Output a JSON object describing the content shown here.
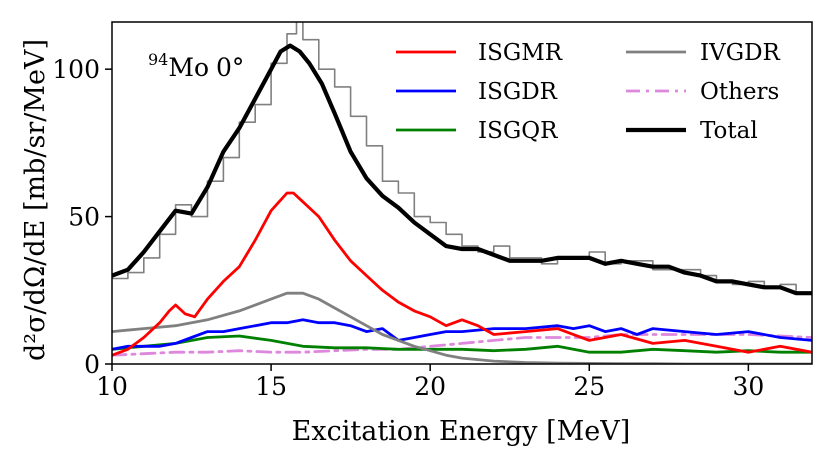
{
  "chart_data": {
    "type": "line",
    "title": "",
    "annotation": {
      "nucleus_mass": "94",
      "nucleus_symbol": "Mo",
      "angle": "0°"
    },
    "xlabel": "Excitation Energy [MeV]",
    "ylabel": "d²σ/dΩ/dE [mb/sr/MeV]",
    "xlim": [
      10,
      32
    ],
    "ylim": [
      0,
      116
    ],
    "xticks": [
      10,
      15,
      20,
      25,
      30
    ],
    "yticks": [
      0,
      50,
      100
    ],
    "legend_position": "upper-right",
    "series": [
      {
        "name": "ISGMR",
        "color": "#ff0000",
        "style": "solid",
        "x": [
          10,
          10.5,
          11,
          11.5,
          11.8,
          12,
          12.3,
          12.6,
          13,
          13.5,
          14,
          14.5,
          15,
          15.5,
          15.7,
          16,
          16.5,
          17,
          17.5,
          18,
          18.5,
          19,
          19.5,
          20,
          20.5,
          21,
          21.5,
          22,
          23,
          24,
          25,
          26,
          27,
          28,
          29,
          30,
          31,
          32
        ],
        "y": [
          3,
          5,
          9,
          14,
          18,
          20,
          17,
          16,
          22,
          28,
          33,
          42,
          52,
          58,
          58,
          55,
          50,
          42,
          35,
          30,
          25,
          21,
          18,
          16,
          13,
          15,
          13,
          10,
          11,
          12,
          8,
          10,
          7,
          8,
          6,
          4,
          6,
          4
        ]
      },
      {
        "name": "ISGDR",
        "color": "#0000ff",
        "style": "solid",
        "x": [
          10,
          10.5,
          11,
          11.5,
          12,
          12.5,
          13,
          13.5,
          14,
          14.5,
          15,
          15.5,
          16,
          16.5,
          17,
          17.5,
          18,
          18.5,
          19,
          19.5,
          20,
          20.5,
          21,
          22,
          23,
          24,
          24.5,
          25,
          25.5,
          26,
          26.5,
          27,
          28,
          29,
          30,
          31,
          32
        ],
        "y": [
          5,
          6,
          6,
          6,
          7,
          9,
          11,
          11,
          12,
          13,
          14,
          14,
          15,
          14,
          14,
          13,
          11,
          12,
          8,
          9,
          10,
          11,
          11,
          12,
          12,
          13,
          12,
          13,
          11,
          12,
          10,
          12,
          11,
          10,
          11,
          9,
          8
        ]
      },
      {
        "name": "ISGQR",
        "color": "#008000",
        "style": "solid",
        "x": [
          10,
          11,
          12,
          13,
          14,
          15,
          16,
          17,
          18,
          19,
          20,
          21,
          22,
          23,
          24,
          25,
          26,
          27,
          28,
          29,
          30,
          31,
          32
        ],
        "y": [
          5,
          6,
          7,
          9,
          9.5,
          8,
          6,
          5.5,
          5.5,
          5,
          5,
          5,
          4.5,
          5,
          6,
          4,
          4,
          5,
          4.5,
          4,
          4.5,
          4,
          4
        ]
      },
      {
        "name": "IVGDR",
        "color": "#808080",
        "style": "solid",
        "x": [
          10,
          11,
          12,
          13,
          14,
          15,
          15.5,
          16,
          16.5,
          17,
          17.5,
          18,
          18.5,
          19,
          19.5,
          20,
          20.5,
          21,
          21.5,
          22,
          23,
          24,
          25,
          26,
          27,
          28,
          29,
          30,
          31,
          32
        ],
        "y": [
          11,
          12,
          13,
          15,
          18,
          22,
          24,
          24,
          22,
          19,
          16,
          13,
          10,
          8,
          6,
          4.5,
          3,
          2,
          1.5,
          1,
          0.5,
          0.3,
          0.2,
          0.1,
          0.1,
          0,
          0,
          0,
          0,
          0
        ]
      },
      {
        "name": "Others",
        "color": "#dd88dd",
        "style": "dashdot",
        "x": [
          10,
          11,
          12,
          13,
          14,
          15,
          16,
          17,
          18,
          19,
          20,
          21,
          22,
          23,
          24,
          25,
          26,
          27,
          28,
          29,
          30,
          31,
          32
        ],
        "y": [
          3,
          3.5,
          4,
          4,
          4.5,
          4,
          4,
          4.5,
          5,
          5,
          6,
          7,
          8,
          9,
          9,
          9,
          10,
          10,
          10,
          10,
          10,
          9.5,
          9
        ]
      },
      {
        "name": "Total",
        "color": "#000000",
        "style": "solid",
        "x": [
          10,
          10.5,
          11,
          11.5,
          12,
          12.5,
          13,
          13.5,
          14,
          14.5,
          15,
          15.3,
          15.6,
          15.9,
          16.2,
          16.6,
          17,
          17.5,
          18,
          18.5,
          19,
          19.5,
          20,
          20.5,
          21,
          21.5,
          22,
          22.5,
          23,
          23.5,
          24,
          24.5,
          25,
          25.5,
          26,
          26.5,
          27,
          27.5,
          28,
          28.5,
          29,
          29.5,
          30,
          30.5,
          31,
          31.5,
          32
        ],
        "y": [
          30,
          32,
          38,
          45,
          52,
          51,
          60,
          72,
          80,
          90,
          100,
          106,
          108,
          106,
          102,
          95,
          85,
          72,
          63,
          57,
          53,
          48,
          44,
          40,
          39,
          39,
          37,
          35,
          35,
          35,
          36,
          36,
          36,
          34,
          35,
          34,
          33,
          33,
          31,
          30,
          28,
          28,
          27,
          26,
          26,
          24,
          24
        ]
      },
      {
        "name": "Data",
        "color": "#808080",
        "style": "steps",
        "in_legend": false,
        "x": [
          10,
          10.5,
          11,
          11.5,
          12,
          12.5,
          13,
          13.5,
          14,
          14.5,
          15,
          15.5,
          15.8,
          16,
          16.5,
          17,
          17.5,
          18,
          18.5,
          19,
          19.5,
          20,
          20.5,
          21,
          21.5,
          22,
          22.5,
          23,
          23.5,
          24,
          24.5,
          25,
          25.5,
          26,
          26.5,
          27,
          27.5,
          28,
          28.5,
          29,
          29.5,
          30,
          30.5,
          31,
          31.5,
          32
        ],
        "y": [
          29,
          31,
          36,
          44,
          54,
          50,
          62,
          70,
          82,
          88,
          102,
          112,
          118,
          110,
          100,
          94,
          84,
          74,
          62,
          58,
          50,
          48,
          44,
          40,
          38,
          40,
          36,
          36,
          34,
          36,
          36,
          38,
          34,
          35,
          35,
          32,
          32,
          32,
          30,
          28,
          27,
          28,
          26,
          27,
          24,
          24
        ]
      }
    ],
    "legend_entries": [
      "ISGMR",
      "ISGDR",
      "ISGQR",
      "IVGDR",
      "Others",
      "Total"
    ]
  }
}
